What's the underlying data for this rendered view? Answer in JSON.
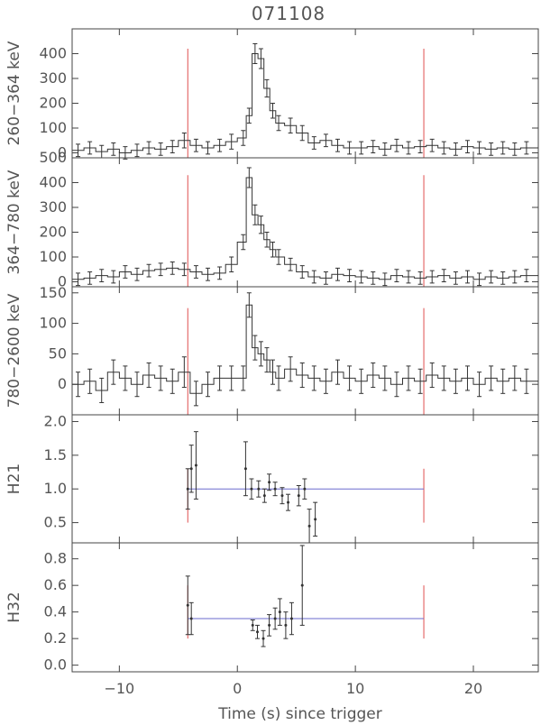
{
  "title": "071108",
  "xlabel": "Time (s) since trigger",
  "colors": {
    "axis": "#444444",
    "data": "#333333",
    "marker": "#e05050",
    "fit": "#6a6acd"
  },
  "chart_data": [
    {
      "type": "line",
      "name": "panel-260-364",
      "ylabel": "260−364 keV",
      "xlim": [
        -14,
        25.5
      ],
      "ylim": [
        -20,
        500
      ],
      "xticks": [
        -10,
        0,
        10,
        20
      ],
      "yticks": [
        0,
        100,
        200,
        300,
        400
      ],
      "ytick_labels": [
        "0",
        "100",
        "200",
        "300",
        "400"
      ],
      "binned": true,
      "x": [
        -13.5,
        -12.5,
        -11.5,
        -10.5,
        -9.5,
        -8.5,
        -7.5,
        -6.5,
        -5.5,
        -4.5,
        -3.5,
        -2.5,
        -1.5,
        -0.5,
        0.5,
        1.0,
        1.5,
        2.0,
        2.5,
        3.0,
        3.5,
        4.5,
        5.5,
        6.5,
        7.5,
        8.5,
        9.5,
        10.5,
        11.5,
        12.5,
        13.5,
        14.5,
        15.5,
        16.5,
        17.5,
        18.5,
        19.5,
        20.5,
        21.5,
        22.5,
        23.5,
        24.5
      ],
      "y": [
        10,
        20,
        5,
        15,
        0,
        10,
        20,
        15,
        25,
        50,
        30,
        20,
        30,
        45,
        60,
        150,
        400,
        380,
        260,
        170,
        120,
        110,
        80,
        40,
        50,
        30,
        20,
        20,
        25,
        15,
        30,
        20,
        25,
        30,
        20,
        15,
        25,
        20,
        15,
        20,
        15,
        20
      ],
      "errors": [
        25,
        25,
        25,
        25,
        25,
        25,
        25,
        25,
        25,
        30,
        25,
        25,
        25,
        30,
        30,
        30,
        40,
        40,
        35,
        30,
        30,
        30,
        30,
        25,
        25,
        25,
        25,
        25,
        25,
        25,
        25,
        25,
        25,
        25,
        25,
        25,
        25,
        25,
        25,
        25,
        25,
        25
      ],
      "markers": [
        -4.2,
        15.8
      ],
      "marker_range": [
        -20,
        420
      ]
    },
    {
      "type": "line",
      "name": "panel-364-780",
      "ylabel": "364−780 keV",
      "xlim": [
        -14,
        25.5
      ],
      "ylim": [
        -20,
        500
      ],
      "xticks": [
        -10,
        0,
        10,
        20
      ],
      "yticks": [
        0,
        100,
        200,
        300,
        400,
        500
      ],
      "ytick_labels": [
        "0",
        "100",
        "200",
        "300",
        "400",
        "500"
      ],
      "binned": true,
      "x": [
        -13.5,
        -12.5,
        -11.5,
        -10.5,
        -9.5,
        -8.5,
        -7.5,
        -6.5,
        -5.5,
        -4.5,
        -3.5,
        -2.5,
        -1.5,
        -0.5,
        0.5,
        1.0,
        1.5,
        2.0,
        2.5,
        3.0,
        3.5,
        4.5,
        5.5,
        6.5,
        7.5,
        8.5,
        9.5,
        10.5,
        11.5,
        12.5,
        13.5,
        14.5,
        15.5,
        16.5,
        17.5,
        18.5,
        19.5,
        20.5,
        21.5,
        22.5,
        23.5,
        24.5
      ],
      "y": [
        10,
        15,
        25,
        20,
        40,
        30,
        45,
        50,
        55,
        50,
        40,
        30,
        35,
        70,
        160,
        420,
        270,
        230,
        170,
        130,
        100,
        70,
        40,
        20,
        15,
        30,
        25,
        20,
        15,
        10,
        25,
        20,
        15,
        20,
        25,
        15,
        20,
        10,
        20,
        15,
        20,
        25
      ],
      "errors": [
        25,
        25,
        25,
        25,
        25,
        25,
        25,
        25,
        25,
        25,
        25,
        25,
        25,
        30,
        30,
        40,
        40,
        35,
        30,
        30,
        30,
        25,
        25,
        25,
        25,
        25,
        25,
        25,
        25,
        25,
        25,
        25,
        25,
        25,
        25,
        25,
        25,
        25,
        25,
        25,
        25,
        25
      ],
      "markers": [
        -4.2,
        15.8
      ],
      "marker_range": [
        -20,
        430
      ]
    },
    {
      "type": "line",
      "name": "panel-780-2600",
      "ylabel": "780−2600 keV",
      "xlim": [
        -14,
        25.5
      ],
      "ylim": [
        -50,
        160
      ],
      "xticks": [
        -10,
        0,
        10,
        20
      ],
      "yticks": [
        0,
        50,
        100,
        150
      ],
      "ytick_labels": [
        "0",
        "50",
        "100",
        "150"
      ],
      "binned": true,
      "x": [
        -13.5,
        -12.5,
        -11.5,
        -10.5,
        -9.5,
        -8.5,
        -7.5,
        -6.5,
        -5.5,
        -4.5,
        -3.5,
        -2.5,
        -1.5,
        -0.5,
        0.5,
        1.0,
        1.5,
        2.0,
        2.5,
        3.0,
        3.5,
        4.5,
        5.5,
        6.5,
        7.5,
        8.5,
        9.5,
        10.5,
        11.5,
        12.5,
        13.5,
        14.5,
        15.5,
        16.5,
        17.5,
        18.5,
        19.5,
        20.5,
        21.5,
        22.5,
        23.5,
        24.5
      ],
      "y": [
        0,
        5,
        -10,
        20,
        10,
        0,
        15,
        10,
        5,
        20,
        -15,
        0,
        10,
        10,
        10,
        130,
        60,
        50,
        40,
        20,
        10,
        25,
        15,
        10,
        5,
        20,
        10,
        5,
        15,
        10,
        0,
        10,
        5,
        15,
        10,
        5,
        10,
        0,
        10,
        5,
        10,
        5
      ],
      "errors": [
        20,
        20,
        20,
        20,
        20,
        20,
        20,
        20,
        20,
        25,
        20,
        20,
        20,
        20,
        20,
        20,
        20,
        20,
        20,
        20,
        20,
        20,
        20,
        20,
        20,
        20,
        20,
        20,
        20,
        20,
        20,
        20,
        20,
        20,
        20,
        20,
        20,
        20,
        20,
        20,
        20,
        20
      ],
      "markers": [
        -4.2,
        15.8
      ],
      "marker_range": [
        -50,
        125
      ]
    },
    {
      "type": "scatter",
      "name": "panel-h21",
      "ylabel": "H21",
      "xlim": [
        -14,
        25.5
      ],
      "ylim": [
        0.2,
        2.1
      ],
      "xticks": [
        -10,
        0,
        10,
        20
      ],
      "yticks": [
        0.5,
        1.0,
        1.5,
        2.0
      ],
      "ytick_labels": [
        "0.5",
        "1.0",
        "1.5",
        "2.0"
      ],
      "binned": false,
      "x": [
        -4.2,
        -3.9,
        -3.5,
        0.7,
        1.2,
        1.8,
        2.3,
        2.7,
        3.2,
        3.8,
        4.3,
        5.2,
        5.7,
        6.1,
        6.6
      ],
      "y": [
        1.0,
        1.3,
        1.35,
        1.3,
        1.0,
        1.0,
        0.9,
        1.1,
        1.0,
        0.9,
        0.8,
        0.9,
        1.0,
        0.45,
        0.55
      ],
      "errors": [
        0.3,
        0.35,
        0.5,
        0.4,
        0.15,
        0.12,
        0.1,
        0.12,
        0.1,
        0.12,
        0.12,
        0.15,
        0.15,
        0.25,
        0.25
      ],
      "fit_value": 1.0,
      "fit_range": [
        -4.2,
        15.8
      ],
      "markers": [
        -4.2,
        15.8
      ],
      "marker_range": [
        0.5,
        1.3
      ]
    },
    {
      "type": "scatter",
      "name": "panel-h32",
      "ylabel": "H32",
      "xlim": [
        -14,
        25.5
      ],
      "ylim": [
        -0.05,
        0.92
      ],
      "xticks": [
        -10,
        0,
        10,
        20
      ],
      "yticks": [
        0.0,
        0.2,
        0.4,
        0.6,
        0.8
      ],
      "ytick_labels": [
        "0.0",
        "0.2",
        "0.4",
        "0.6",
        "0.8"
      ],
      "binned": false,
      "x": [
        -4.2,
        -3.9,
        1.3,
        1.7,
        2.2,
        2.7,
        3.2,
        3.6,
        4.1,
        4.6,
        5.5
      ],
      "y": [
        0.45,
        0.35,
        0.3,
        0.25,
        0.2,
        0.3,
        0.35,
        0.4,
        0.3,
        0.35,
        0.6
      ],
      "errors": [
        0.22,
        0.12,
        0.04,
        0.05,
        0.06,
        0.08,
        0.08,
        0.1,
        0.1,
        0.12,
        0.3
      ],
      "fit_value": 0.35,
      "fit_range": [
        -4.2,
        15.8
      ],
      "markers": [
        -4.2,
        15.8
      ],
      "marker_range": [
        0.2,
        0.6
      ]
    }
  ]
}
